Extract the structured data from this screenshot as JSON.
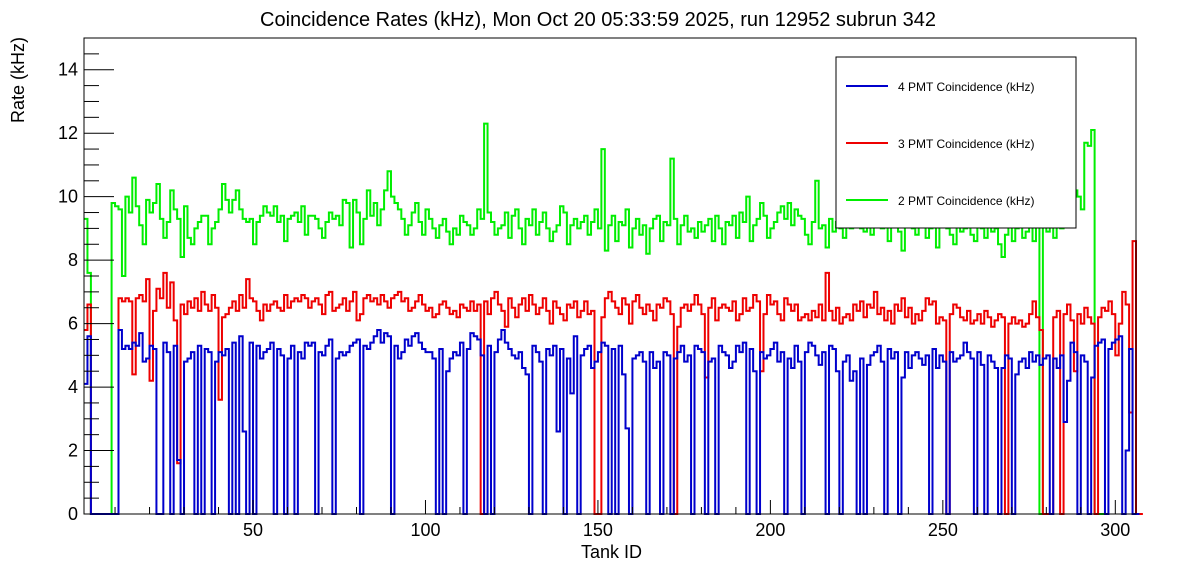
{
  "chart_data": {
    "type": "line",
    "title": "Coincidence Rates (kHz), Mon Oct 20 05:33:59 2025, run 12952 subrun 342",
    "xlabel": "Tank ID",
    "ylabel": "Rate (kHz)",
    "xlim": [
      1,
      306
    ],
    "ylim": [
      0,
      15
    ],
    "x_ticks": [
      50,
      100,
      150,
      200,
      250,
      300
    ],
    "y_ticks": [
      0,
      2,
      4,
      6,
      8,
      10,
      12,
      14
    ],
    "grid": false,
    "legend_position": "top-right",
    "series": [
      {
        "name": "4 PMT Coincidence (kHz)",
        "color": "#0000cc",
        "values": [
          4.1,
          5.6,
          0,
          0,
          0,
          0,
          0,
          0,
          0,
          0,
          5.8,
          5.2,
          5.3,
          5.2,
          5.4,
          5.3,
          5.7,
          4.8,
          4.9,
          5.3,
          5.2,
          0,
          0,
          5.4,
          5.1,
          0,
          5.3,
          1.7,
          0,
          4.8,
          4.9,
          5.1,
          0,
          5.3,
          0,
          5.2,
          5.1,
          0,
          4.8,
          5.1,
          5.0,
          5.2,
          0,
          5.4,
          0,
          5.6,
          2.6,
          0,
          5.4,
          0,
          5.3,
          4.9,
          5.1,
          5.2,
          5.4,
          0,
          5.2,
          5.0,
          0,
          4.9,
          5.3,
          0,
          5.1,
          4.9,
          5.4,
          5.3,
          5.4,
          0,
          5.1,
          5.0,
          5.3,
          5.5,
          0,
          4.9,
          5.1,
          5.0,
          5.1,
          5.3,
          5.4,
          5.5,
          0,
          5.3,
          5.2,
          5.4,
          5.6,
          5.8,
          5.4,
          5.7,
          5.6,
          0,
          5.3,
          4.9,
          5.1,
          5.5,
          5.3,
          5.6,
          5.7,
          5.4,
          5.2,
          5.1,
          5.1,
          4.9,
          0,
          5.2,
          0,
          4.5,
          4.9,
          5.1,
          5.0,
          5.4,
          0,
          5.2,
          5.7,
          5.6,
          5.5,
          5.0,
          0,
          5.3,
          0,
          5.1,
          5.5,
          5.8,
          5.4,
          5.2,
          5.0,
          4.9,
          5.1,
          4.6,
          4.4,
          0,
          5.3,
          5.1,
          4.8,
          0,
          5.2,
          5.0,
          5.3,
          2.6,
          5.2,
          0,
          4.9,
          3.8,
          5.6,
          0,
          5.0,
          5.2,
          5.3,
          4.6,
          4.8,
          5.1,
          5.4,
          5.3,
          0,
          5.2,
          0,
          5.3,
          4.4,
          2.7,
          0,
          4.9,
          5.0,
          5.1,
          4.8,
          0,
          5.1,
          4.6,
          4.8,
          0,
          5.1,
          5.0,
          0,
          4.9,
          5.1,
          5.3,
          4.8,
          5.0,
          0,
          5.3,
          5.2,
          5.1,
          0,
          4.8,
          4.9,
          0,
          5.3,
          5.1,
          5.0,
          4.6,
          4.8,
          5.3,
          5.1,
          5.4,
          0,
          5.2,
          4.5,
          0,
          5.1,
          4.9,
          5.0,
          5.2,
          5.4,
          4.8,
          5.1,
          0,
          4.9,
          4.6,
          5.3,
          4.8,
          0,
          5.1,
          5.4,
          5.3,
          5.0,
          4.7,
          5.1,
          0,
          5.3,
          5.2,
          4.5,
          0,
          4.8,
          5.0,
          4.2,
          4.5,
          0,
          4.9,
          0,
          4.7,
          5.0,
          5.1,
          5.3,
          4.8,
          0,
          5.2,
          4.9,
          5.1,
          0,
          4.3,
          5.1,
          4.6,
          5.0,
          5.1,
          4.9,
          4.7,
          5.0,
          0,
          5.2,
          4.6,
          5.0,
          4.8,
          0,
          5.1,
          4.8,
          4.9,
          5.0,
          5.4,
          5.1,
          4.9,
          0,
          5.1,
          4.7,
          0,
          5.0,
          4.8,
          4.6,
          0,
          4.6,
          5.0,
          4.9,
          0,
          4.4,
          4.8,
          4.9,
          4.6,
          5.1,
          4.8,
          5.0,
          4.7,
          4.9,
          5.0,
          0,
          4.9,
          4.6,
          5.0,
          2.9,
          4.2,
          5.4,
          5.1,
          0,
          5.0,
          4.8,
          0,
          4.3,
          5.3,
          5.4,
          5.5,
          0,
          5.2,
          5.4,
          5.5,
          5.6,
          0,
          2.0,
          5.2,
          0,
          0
        ]
      },
      {
        "name": "3 PMT Coincidence (kHz)",
        "color": "#ee0000",
        "values": [
          5.8,
          6.6,
          0,
          0,
          0,
          0,
          0,
          0,
          0,
          0,
          6.8,
          6.7,
          6.8,
          6.7,
          4.4,
          6.8,
          6.9,
          6.7,
          7.4,
          4.2,
          6.4,
          7.1,
          6.8,
          7.6,
          6.5,
          7.3,
          6.1,
          1.6,
          6.6,
          6.3,
          6.7,
          6.5,
          6.8,
          6.4,
          7.0,
          6.6,
          6.4,
          6.9,
          6.5,
          3.6,
          6.2,
          6.3,
          6.5,
          6.7,
          6.4,
          6.9,
          6.5,
          7.4,
          6.8,
          6.7,
          6.4,
          6.1,
          6.6,
          6.4,
          6.6,
          6.7,
          6.5,
          6.4,
          6.9,
          6.5,
          6.7,
          6.8,
          6.7,
          6.9,
          6.8,
          6.5,
          6.7,
          6.8,
          6.6,
          6.3,
          6.9,
          7.0,
          6.4,
          6.5,
          6.6,
          6.8,
          6.4,
          6.7,
          7.0,
          6.1,
          6.3,
          6.8,
          6.9,
          6.7,
          6.8,
          6.6,
          6.9,
          6.7,
          6.5,
          6.8,
          6.9,
          7.0,
          6.7,
          6.8,
          6.4,
          6.5,
          6.7,
          6.9,
          6.6,
          6.4,
          6.5,
          6.2,
          6.3,
          6.6,
          6.7,
          6.5,
          6.3,
          6.4,
          6.2,
          6.6,
          6.5,
          6.4,
          6.7,
          6.4,
          6.6,
          0,
          6.7,
          6.3,
          6.8,
          7.0,
          6.6,
          6.4,
          5.9,
          6.8,
          6.5,
          6.2,
          6.6,
          6.8,
          6.4,
          6.9,
          6.6,
          6.3,
          6.5,
          6.8,
          6.4,
          6.0,
          6.7,
          6.5,
          6.3,
          6.1,
          6.6,
          6.5,
          6.7,
          6.2,
          6.4,
          6.7,
          6.3,
          6.4,
          0,
          0,
          6.2,
          6.8,
          7.0,
          6.7,
          6.5,
          6.3,
          6.8,
          6.6,
          6.0,
          6.7,
          6.9,
          6.5,
          6.3,
          6.6,
          6.4,
          6.1,
          6.6,
          6.5,
          6.8,
          6.7,
          6.3,
          0,
          5.9,
          6.5,
          6.6,
          6.4,
          6.6,
          6.9,
          6.6,
          6.3,
          4.3,
          6.5,
          6.8,
          6.1,
          6.5,
          6.6,
          6.5,
          6.4,
          6.7,
          6.1,
          6.3,
          6.8,
          6.4,
          6.5,
          6.9,
          6.7,
          4.5,
          6.3,
          6.9,
          6.6,
          6.7,
          6.3,
          6.1,
          6.8,
          6.6,
          6.4,
          6.6,
          6.1,
          6.2,
          6.3,
          6.1,
          6.4,
          6.2,
          6.6,
          6.1,
          7.6,
          6.4,
          6.1,
          6.5,
          6.0,
          6.2,
          6.3,
          6.1,
          6.6,
          6.4,
          6.7,
          6.2,
          6.6,
          6.5,
          7.0,
          6.3,
          6.5,
          6.1,
          6.4,
          6.0,
          6.6,
          6.4,
          6.8,
          6.2,
          6.5,
          6.0,
          6.3,
          6.1,
          6.4,
          6.8,
          6.6,
          6.7,
          6.0,
          6.2,
          6.1,
          0,
          6.3,
          6.6,
          6.5,
          6.2,
          6.1,
          6.4,
          6.0,
          6.1,
          6.3,
          6.0,
          6.4,
          6.2,
          5.9,
          6.1,
          6.3,
          6.2,
          0,
          6.0,
          6.2,
          6.0,
          6.1,
          5.9,
          6.0,
          6.3,
          6.7,
          6.2,
          5.8,
          0,
          0,
          0,
          6.2,
          6.4,
          0,
          6.3,
          6.6,
          6.1,
          4.5,
          6.3,
          6.0,
          6.5,
          6.2,
          6.0,
          0,
          6.2,
          6.5,
          6.4,
          6.7,
          6.3,
          5.0,
          6.0,
          7.0,
          6.6,
          3.2,
          8.6,
          0,
          0
        ]
      },
      {
        "name": "2 PMT Coincidence (kHz)",
        "color": "#00ee00",
        "values": [
          9.3,
          7.6,
          0,
          0,
          0,
          0,
          0,
          0,
          9.8,
          9.7,
          9.6,
          7.5,
          10.0,
          9.5,
          10.6,
          9.7,
          9.1,
          8.5,
          9.9,
          9.5,
          9.8,
          10.4,
          9.3,
          8.7,
          9.2,
          10.2,
          9.6,
          9.3,
          8.1,
          9.7,
          8.7,
          8.5,
          9.0,
          9.2,
          9.4,
          9.4,
          8.5,
          9.0,
          9.2,
          9.6,
          10.4,
          9.9,
          9.5,
          9.9,
          10.2,
          9.6,
          9.3,
          9.2,
          9.3,
          8.5,
          9.2,
          9.4,
          9.7,
          9.5,
          9.4,
          9.7,
          9.2,
          9.4,
          8.6,
          9.3,
          9.4,
          9.5,
          9.2,
          9.7,
          8.8,
          9.4,
          9.4,
          9.3,
          9.0,
          8.7,
          9.2,
          9.5,
          9.3,
          9.4,
          9.1,
          9.9,
          9.8,
          8.4,
          9.9,
          9.5,
          8.5,
          9.3,
          10.2,
          9.4,
          9.8,
          9.1,
          9.6,
          10.2,
          10.8,
          10.0,
          9.8,
          9.6,
          9.3,
          8.8,
          9.1,
          9.5,
          9.8,
          9.2,
          8.8,
          9.6,
          9.3,
          9.0,
          8.7,
          9.1,
          9.3,
          8.9,
          8.5,
          9.0,
          8.8,
          9.4,
          9.2,
          9.1,
          8.8,
          9.0,
          9.6,
          9.3,
          12.3,
          9.5,
          9.2,
          8.8,
          9.0,
          9.1,
          9.5,
          8.7,
          9.4,
          9.6,
          9.0,
          8.5,
          9.3,
          9.1,
          9.6,
          8.8,
          9.2,
          9.5,
          9.0,
          8.6,
          8.9,
          9.1,
          9.7,
          9.5,
          8.5,
          9.1,
          9.3,
          9.0,
          9.2,
          9.4,
          8.8,
          9.2,
          9.6,
          9.0,
          11.5,
          8.3,
          9.1,
          9.4,
          8.6,
          9.2,
          9.1,
          9.6,
          8.4,
          9.0,
          9.3,
          8.8,
          9.1,
          8.2,
          9.0,
          9.3,
          9.4,
          8.6,
          9.2,
          9.1,
          11.2,
          9.3,
          8.5,
          9.1,
          9.4,
          8.9,
          9.0,
          8.7,
          9.2,
          8.9,
          9.1,
          9.3,
          8.6,
          9.4,
          9.0,
          8.5,
          9.2,
          9.1,
          9.4,
          8.7,
          9.5,
          9.2,
          10.0,
          8.6,
          9.1,
          9.3,
          9.8,
          9.4,
          8.7,
          9.0,
          9.2,
          9.5,
          9.7,
          9.3,
          9.8,
          9.1,
          9.6,
          9.4,
          9.3,
          8.8,
          8.5,
          9.2,
          10.5,
          9.0,
          9.1,
          8.4,
          9.3,
          8.9,
          9.2,
          9.0,
          8.7,
          9.3,
          9.0,
          9.1,
          9.3,
          9.0,
          8.9,
          9.4,
          8.8,
          9.1,
          9.5,
          9.0,
          9.3,
          8.6,
          9.2,
          9.4,
          8.9,
          8.3,
          9.2,
          9.6,
          9.0,
          8.8,
          9.3,
          9.1,
          8.7,
          9.0,
          9.5,
          8.4,
          9.1,
          9.3,
          9.0,
          8.8,
          8.5,
          9.2,
          8.9,
          9.0,
          9.3,
          8.8,
          8.6,
          9.1,
          9.0,
          8.7,
          9.2,
          8.9,
          9.0,
          8.5,
          8.1,
          8.8,
          9.3,
          8.6,
          9.0,
          9.1,
          8.7,
          8.9,
          9.1,
          8.6,
          9.3,
          0,
          9.1,
          8.9,
          9.4,
          8.7,
          9.5,
          9.0,
          9.6,
          9.3,
          9.4,
          10.2,
          10.0,
          9.6,
          11.7,
          11.6,
          12.1,
          0,
          0,
          0
        ]
      }
    ]
  }
}
